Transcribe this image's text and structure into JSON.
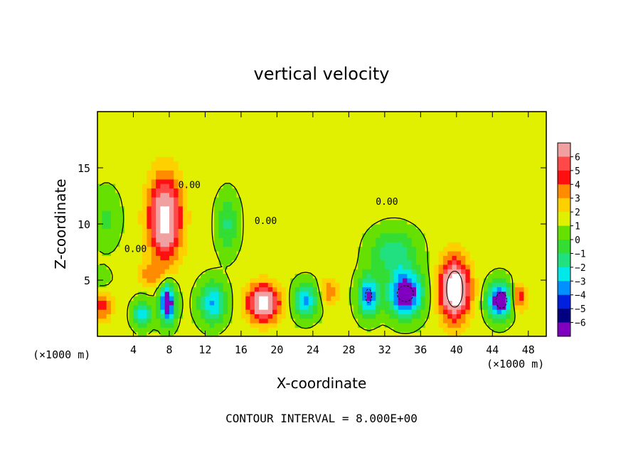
{
  "chart_data": {
    "type": "heatmap",
    "title": "vertical velocity",
    "xlabel": "X-coordinate",
    "ylabel": "Z-coordinate",
    "x_unit_label": "(×1000 m)",
    "x_unit_label_right": "(×1000 m)",
    "footer": "CONTOUR INTERVAL = 8.000E+00",
    "xlim": [
      0,
      50
    ],
    "ylim": [
      0,
      20
    ],
    "x_ticks": [
      4,
      8,
      12,
      16,
      20,
      24,
      28,
      32,
      36,
      40,
      44,
      48
    ],
    "y_ticks": [
      5,
      10,
      15
    ],
    "colorbar": {
      "levels": [
        6,
        5,
        4,
        3,
        2,
        1,
        0,
        -1,
        -2,
        -3,
        -4,
        -5,
        -6
      ],
      "colors": [
        "#f0a0a0",
        "#ff4848",
        "#ff1010",
        "#ff8c00",
        "#ffd000",
        "#e0f000",
        "#66e000",
        "#33dd33",
        "#20e080",
        "#00e8e8",
        "#0090ff",
        "#0020e0",
        "#000080",
        "#8000c0"
      ]
    },
    "background_value": 0.3,
    "contour_labels": [
      {
        "text": "0.00",
        "x": 9,
        "y": 13.2
      },
      {
        "text": "0.00",
        "x": 17.5,
        "y": 10
      },
      {
        "text": "0.00",
        "x": 31,
        "y": 11.7
      },
      {
        "text": "0.00",
        "x": 3,
        "y": 7.5
      }
    ],
    "updrafts": [
      {
        "x": 7.5,
        "z": 10.5,
        "amp": 7.5,
        "sx": 1.8,
        "sz": 3.6
      },
      {
        "x": 18.5,
        "z": 3.0,
        "amp": 7.5,
        "sx": 1.8,
        "sz": 1.6
      },
      {
        "x": 39.8,
        "z": 4.2,
        "amp": 9.0,
        "sx": 1.6,
        "sz": 2.6
      },
      {
        "x": 47.0,
        "z": 3.5,
        "amp": 3.5,
        "sx": 0.8,
        "sz": 1.2
      },
      {
        "x": 0.5,
        "z": 2.8,
        "amp": 3.0,
        "sx": 1.2,
        "sz": 1.5
      },
      {
        "x": 25.8,
        "z": 4.0,
        "amp": 2.5,
        "sx": 1.0,
        "sz": 1.2
      },
      {
        "x": 6.0,
        "z": 5.5,
        "amp": 2.0,
        "sx": 1.5,
        "sz": 1.0
      }
    ],
    "downdrafts": [
      {
        "x": 7.8,
        "z": 3.0,
        "amp": 7.0,
        "sx": 0.9,
        "sz": 1.8
      },
      {
        "x": 5.0,
        "z": 2.0,
        "amp": 4.5,
        "sx": 1.0,
        "sz": 1.2
      },
      {
        "x": 12.8,
        "z": 3.0,
        "amp": 4.5,
        "sx": 1.5,
        "sz": 1.8
      },
      {
        "x": 14.5,
        "z": 10.0,
        "amp": 2.5,
        "sx": 1.2,
        "sz": 2.5
      },
      {
        "x": 23.2,
        "z": 3.2,
        "amp": 4.5,
        "sx": 1.4,
        "sz": 1.5
      },
      {
        "x": 30.2,
        "z": 3.6,
        "amp": 5.5,
        "sx": 1.2,
        "sz": 1.8
      },
      {
        "x": 34.3,
        "z": 3.8,
        "amp": 7.0,
        "sx": 1.9,
        "sz": 2.0
      },
      {
        "x": 33.0,
        "z": 7.5,
        "amp": 3.0,
        "sx": 2.5,
        "sz": 2.0
      },
      {
        "x": 44.8,
        "z": 3.2,
        "amp": 7.0,
        "sx": 1.3,
        "sz": 1.6
      },
      {
        "x": 1.0,
        "z": 10.5,
        "amp": 1.5,
        "sx": 1.5,
        "sz": 2.5
      },
      {
        "x": 0.5,
        "z": 5.0,
        "amp": 1.5,
        "sx": 1.0,
        "sz": 1.0
      }
    ]
  }
}
